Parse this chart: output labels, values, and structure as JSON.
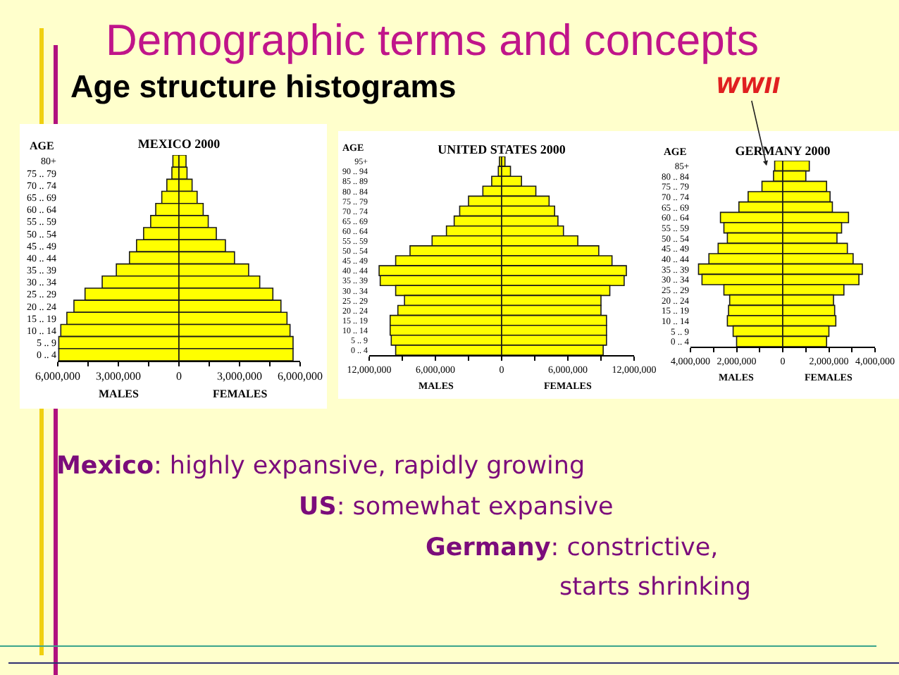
{
  "chart_data": [
    {
      "type": "other",
      "title": "Demographic terms and concepts",
      "subtitle": "Age structure histograms",
      "annotations": [
        "Mexico: highly expansive, rapidly growing",
        "US: somewhat expansive",
        "Germany: constrictive,\nstarts shrinking"
      ]
    },
    {
      "type": "bar",
      "orientation": "horizontal",
      "stacked": true,
      "title": "MEXICO 2000",
      "ylabel": "AGE",
      "categories": [
        "80+",
        "75 .. 79",
        "70 .. 74",
        "65 .. 69",
        "60 .. 64",
        "55 .. 59",
        "50 .. 54",
        "45 .. 49",
        "40 .. 44",
        "35 .. 39",
        "30 .. 34",
        "25 .. 29",
        "20 .. 24",
        "15 .. 19",
        "10 .. 14",
        "5 .. 9",
        "0 .. 4"
      ],
      "series": [
        {
          "name": "MALES",
          "color": "#ffff00",
          "values": [
            -300000,
            -350000,
            -600000,
            -850000,
            -1150000,
            -1400000,
            -1750000,
            -2100000,
            -2450000,
            -3100000,
            -3800000,
            -4650000,
            -5200000,
            -5550000,
            -5850000,
            -5950000,
            -5950000
          ]
        },
        {
          "name": "FEMALES",
          "color": "#ffff00",
          "values": [
            350000,
            400000,
            650000,
            900000,
            1200000,
            1450000,
            1850000,
            2300000,
            2750000,
            3450000,
            4000000,
            4650000,
            5050000,
            5350000,
            5500000,
            5650000,
            5650000
          ]
        }
      ],
      "xlim": [
        -6000000,
        6000000
      ],
      "xticks": [
        {
          "value": -6000000,
          "label": "6,000,000"
        },
        {
          "value": -4500000,
          "label": null
        },
        {
          "value": -3000000,
          "label": "3,000,000"
        },
        {
          "value": -1500000,
          "label": null
        },
        {
          "value": 0,
          "label": "0"
        },
        {
          "value": 1500000,
          "label": null
        },
        {
          "value": 3000000,
          "label": "3,000,000"
        },
        {
          "value": 4500000,
          "label": null
        },
        {
          "value": 6000000,
          "label": "6,000,000"
        }
      ]
    },
    {
      "type": "bar",
      "orientation": "horizontal",
      "stacked": true,
      "title": "UNITED STATES 2000",
      "ylabel": "AGE",
      "categories": [
        "95+",
        "90 .. 94",
        "85 .. 89",
        "80 .. 84",
        "75 .. 79",
        "70 .. 74",
        "65 .. 69",
        "60 .. 64",
        "55 .. 59",
        "50 .. 54",
        "45 .. 49",
        "40 .. 44",
        "35 .. 39",
        "30 .. 34",
        "25 .. 29",
        "20 .. 24",
        "15 .. 19",
        "10 .. 14",
        "5 .. 9",
        "0 .. 4"
      ],
      "series": [
        {
          "name": "MALES",
          "color": "#ffff00",
          "values": [
            -200000,
            -300000,
            -900000,
            -1700000,
            -3000000,
            -3800000,
            -4300000,
            -5000000,
            -6300000,
            -8300000,
            -9600000,
            -11100000,
            -11000000,
            -9600000,
            -8800000,
            -9400000,
            -10100000,
            -10100000,
            -10000000,
            -9600000
          ]
        },
        {
          "name": "FEMALES",
          "color": "#ffff00",
          "values": [
            300000,
            800000,
            1800000,
            3100000,
            4300000,
            4800000,
            5100000,
            5600000,
            6900000,
            8800000,
            10000000,
            11300000,
            11100000,
            9800000,
            9000000,
            9000000,
            9500000,
            9500000,
            9500000,
            9200000
          ]
        }
      ],
      "xlim": [
        -12000000,
        12000000
      ],
      "xticks": [
        {
          "value": -12000000,
          "label": "12,000,000"
        },
        {
          "value": -9000000,
          "label": null
        },
        {
          "value": -6000000,
          "label": "6,000,000"
        },
        {
          "value": -3000000,
          "label": null
        },
        {
          "value": 0,
          "label": "0"
        },
        {
          "value": 3000000,
          "label": null
        },
        {
          "value": 6000000,
          "label": "6,000,000"
        },
        {
          "value": 9000000,
          "label": null
        },
        {
          "value": 12000000,
          "label": "12,000,000"
        }
      ]
    },
    {
      "type": "bar",
      "orientation": "horizontal",
      "stacked": true,
      "title": "GERMANY 2000",
      "ylabel": "AGE",
      "categories": [
        "85+",
        "80 .. 84",
        "75 .. 79",
        "70 .. 74",
        "65 .. 69",
        "60 .. 64",
        "55 .. 59",
        "50 .. 54",
        "45 .. 49",
        "40 .. 44",
        "35 .. 39",
        "30 .. 34",
        "25 .. 29",
        "20 .. 24",
        "15 .. 19",
        "10 .. 14",
        "5 .. 9",
        "0 .. 4"
      ],
      "series": [
        {
          "name": "MALES",
          "color": "#ffff00",
          "values": [
            -350000,
            -400000,
            -900000,
            -1500000,
            -1900000,
            -2700000,
            -2550000,
            -2400000,
            -2800000,
            -3200000,
            -3650000,
            -3500000,
            -2550000,
            -2300000,
            -2350000,
            -2400000,
            -2150000,
            -2000000
          ]
        },
        {
          "name": "FEMALES",
          "color": "#ffff00",
          "values": [
            1150000,
            1000000,
            1900000,
            2050000,
            2150000,
            2850000,
            2550000,
            2350000,
            2800000,
            3050000,
            3450000,
            3300000,
            2650000,
            2200000,
            2250000,
            2300000,
            2000000,
            1900000
          ]
        }
      ],
      "xlim": [
        -4000000,
        4000000
      ],
      "xticks": [
        {
          "value": -4000000,
          "label": "4,000,000"
        },
        {
          "value": -3000000,
          "label": null
        },
        {
          "value": -2000000,
          "label": "2,000,000"
        },
        {
          "value": -1000000,
          "label": null
        },
        {
          "value": 0,
          "label": "0"
        },
        {
          "value": 1000000,
          "label": null
        },
        {
          "value": 2000000,
          "label": "2,000,000"
        },
        {
          "value": 3000000,
          "label": null
        },
        {
          "value": 4000000,
          "label": "4,000,000"
        }
      ],
      "annotations": [
        {
          "text": "WWII",
          "x": -700000,
          "y": "85+"
        }
      ]
    }
  ]
}
